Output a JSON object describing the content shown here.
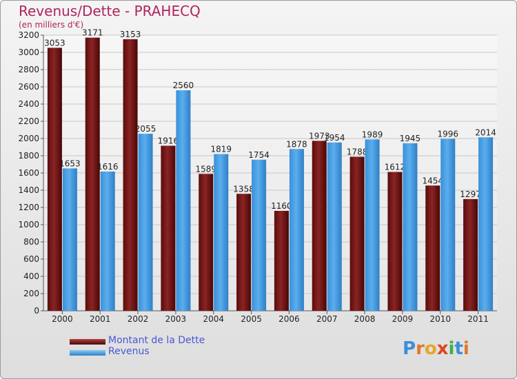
{
  "chart_data": {
    "type": "bar",
    "title": "Revenus/Dette - PRAHECQ",
    "subtitle": "(en milliers d'€)",
    "categories": [
      "2000",
      "2001",
      "2002",
      "2003",
      "2004",
      "2005",
      "2006",
      "2007",
      "2008",
      "2009",
      "2010",
      "2011"
    ],
    "series": [
      {
        "name": "Montant de la Dette",
        "color": "#7a1a1a",
        "values": [
          3053,
          3171,
          3153,
          1916,
          1589,
          1358,
          1160,
          1973,
          1788,
          1612,
          1454,
          1297
        ]
      },
      {
        "name": "Revenus",
        "color": "#3d9be2",
        "values": [
          1653,
          1616,
          2055,
          2560,
          1819,
          1754,
          1878,
          1954,
          1989,
          1945,
          1996,
          2014
        ]
      }
    ],
    "ylim": [
      0,
      3200
    ],
    "yticks": [
      0,
      200,
      400,
      600,
      800,
      1000,
      1200,
      1400,
      1600,
      1800,
      2000,
      2200,
      2400,
      2600,
      2800,
      3000,
      3200
    ],
    "grid": true,
    "legend_position": "bottom-left"
  },
  "logo": {
    "letters": [
      "P",
      "r",
      "o",
      "x",
      "i",
      "t",
      "i"
    ],
    "colors": [
      "#3b8fd9",
      "#e0762a",
      "#e4a826",
      "#e0451b",
      "#3fae49",
      "#3b8fd9",
      "#e0762a"
    ]
  }
}
